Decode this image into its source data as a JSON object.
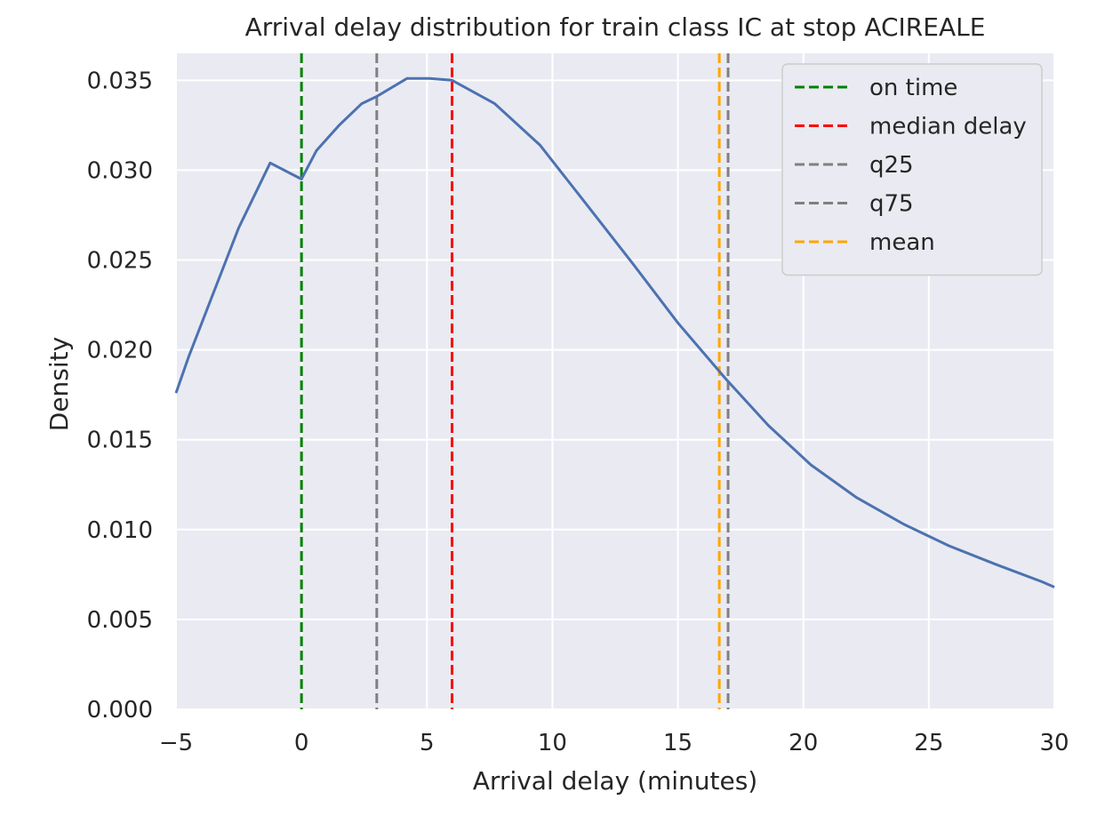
{
  "chart_data": {
    "type": "line",
    "title": "Arrival delay distribution for train class IC at stop ACIREALE",
    "xlabel": "Arrival delay (minutes)",
    "ylabel": "Density",
    "xlim": [
      -5,
      30
    ],
    "ylim": [
      0,
      0.0365
    ],
    "x_ticks": [
      -5,
      0,
      5,
      10,
      15,
      20,
      25,
      30
    ],
    "x_tick_labels": [
      "−5",
      "0",
      "5",
      "10",
      "15",
      "20",
      "25",
      "30"
    ],
    "y_ticks": [
      0,
      0.005,
      0.01,
      0.015,
      0.02,
      0.025,
      0.03,
      0.035
    ],
    "y_tick_labels": [
      "0.000",
      "0.005",
      "0.010",
      "0.015",
      "0.020",
      "0.025",
      "0.030",
      "0.035"
    ],
    "grid": true,
    "background": "#eaeaf2",
    "legend_position": "top-right",
    "series": [
      {
        "color": "#4c72b0",
        "x": [
          -5,
          -4.5,
          -3.5,
          -2.5,
          -1.25,
          0,
          0.6,
          1.5,
          2.4,
          3.0,
          4.2,
          5.1,
          6.0,
          7.7,
          9.5,
          11.3,
          13.2,
          15,
          16.9,
          18.6,
          20.3,
          22.1,
          24,
          25.8,
          27.6,
          29.5,
          30
        ],
        "y": [
          0.0176,
          0.0196,
          0.0232,
          0.0268,
          0.0304,
          0.0295,
          0.0311,
          0.0325,
          0.0337,
          0.0341,
          0.0351,
          0.0351,
          0.035,
          0.0337,
          0.0314,
          0.0282,
          0.0248,
          0.0215,
          0.0184,
          0.0158,
          0.0136,
          0.0118,
          0.0103,
          0.0091,
          0.0081,
          0.0071,
          0.0068
        ]
      }
    ],
    "vlines": [
      {
        "label": "on time",
        "x": 0,
        "color": "#008000"
      },
      {
        "label": "median delay",
        "x": 6,
        "color": "#ff0000"
      },
      {
        "label": "q25",
        "x": 3,
        "color": "#808080"
      },
      {
        "label": "q75",
        "x": 17,
        "color": "#808080"
      },
      {
        "label": "mean",
        "x": 16.65,
        "color": "#ffa500"
      }
    ]
  }
}
